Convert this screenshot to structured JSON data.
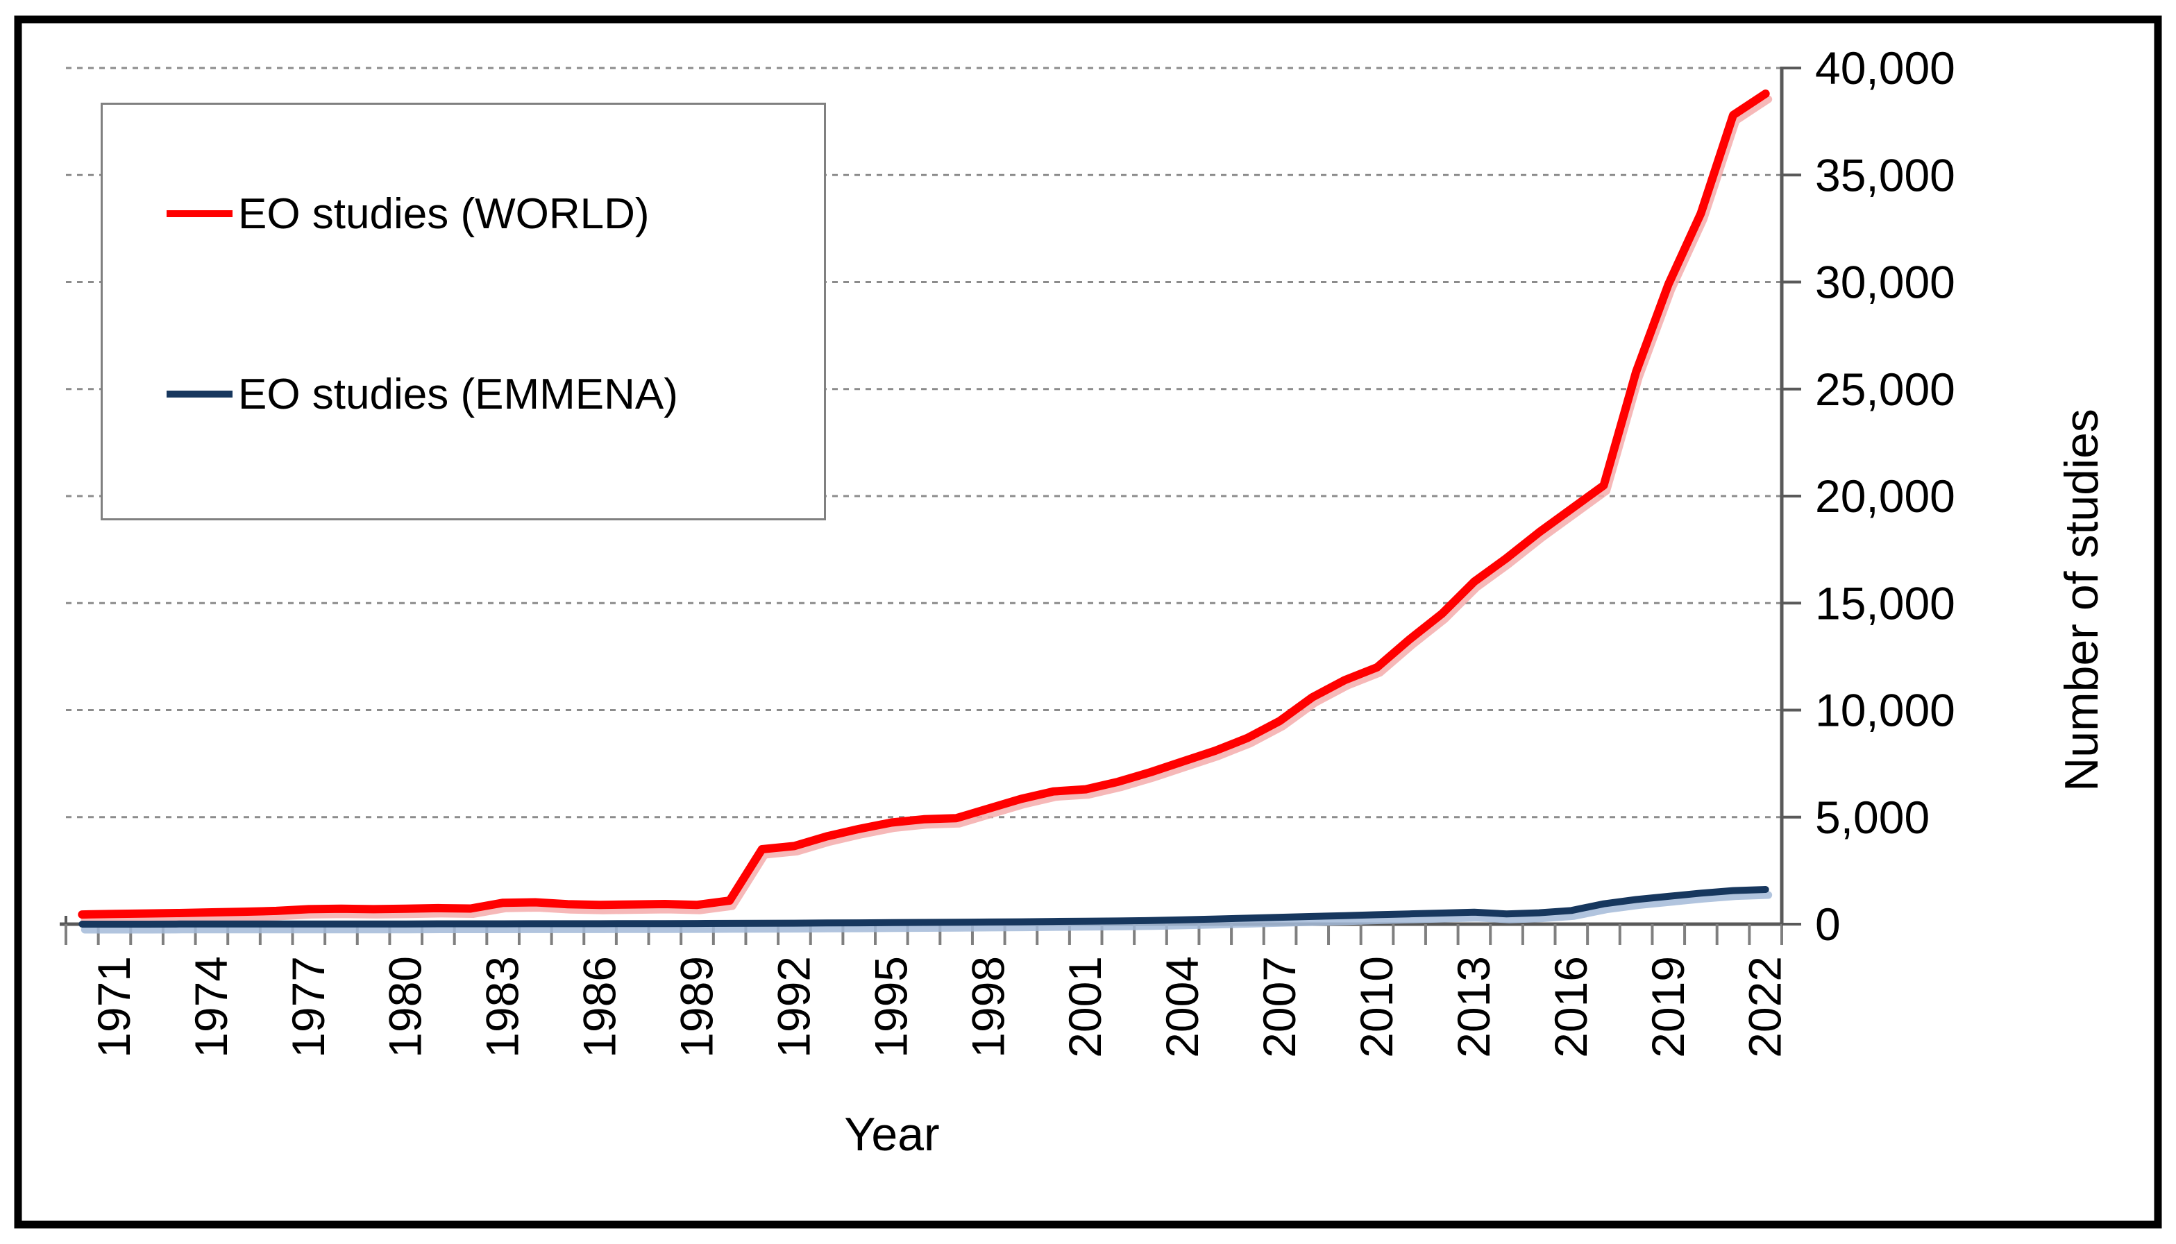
{
  "figure": {
    "background": "#ffffff",
    "outer_border_color": "#000000",
    "outer_border_width": 11,
    "plot_border_color": "#595959",
    "gridline_color": "#8c8c8c",
    "tick_color": "#7f7f7f",
    "text_color": "#000000"
  },
  "legend": {
    "entries": [
      {
        "label": "EO studies (WORLD)",
        "color": "#ff0000"
      },
      {
        "label": "EO studies (EMMENA)",
        "color": "#17375e"
      }
    ]
  },
  "chart_data": {
    "type": "line",
    "title": "",
    "xlabel": "Year",
    "ylabel": "Number of studies",
    "ylim": [
      0,
      40000
    ],
    "y_ticks": [
      0,
      5000,
      10000,
      15000,
      20000,
      25000,
      30000,
      35000,
      40000
    ],
    "y_tick_labels": [
      "0",
      "5,000",
      "10,000",
      "15,000",
      "20,000",
      "25,000",
      "30,000",
      "35,000",
      "40,000"
    ],
    "grid": "horizontal-dashed",
    "legend_position": "top-left-box",
    "x": [
      1970,
      1971,
      1972,
      1973,
      1974,
      1975,
      1976,
      1977,
      1978,
      1979,
      1980,
      1981,
      1982,
      1983,
      1984,
      1985,
      1986,
      1987,
      1988,
      1989,
      1990,
      1991,
      1992,
      1993,
      1994,
      1995,
      1996,
      1997,
      1998,
      1999,
      2000,
      2001,
      2002,
      2003,
      2004,
      2005,
      2006,
      2007,
      2008,
      2009,
      2010,
      2011,
      2012,
      2013,
      2014,
      2015,
      2016,
      2017,
      2018,
      2019,
      2020,
      2021,
      2022
    ],
    "x_label_years": [
      "1971",
      "1974",
      "1977",
      "1980",
      "1983",
      "1986",
      "1989",
      "1992",
      "1995",
      "1998",
      "2001",
      "2004",
      "2007",
      "2010",
      "2013",
      "2016",
      "2019",
      "2022"
    ],
    "series": [
      {
        "name": "EO studies (WORLD)",
        "color": "#ff0000",
        "shadow_color": "#f5abab",
        "values": [
          450,
          480,
          500,
          520,
          550,
          580,
          620,
          700,
          720,
          700,
          720,
          750,
          730,
          1000,
          1020,
          930,
          900,
          920,
          940,
          900,
          1100,
          3500,
          3650,
          4100,
          4450,
          4750,
          4900,
          4950,
          5400,
          5850,
          6200,
          6300,
          6650,
          7100,
          7600,
          8100,
          8700,
          9500,
          10600,
          11400,
          12000,
          13300,
          14500,
          16000,
          17100,
          18300,
          19400,
          20500,
          25800,
          29900,
          33200,
          37800,
          38800
        ]
      },
      {
        "name": "EO studies (EMMENA)",
        "color": "#17375e",
        "shadow_color": "#a3bad8",
        "values": [
          0,
          0,
          0,
          5,
          5,
          5,
          5,
          10,
          10,
          10,
          10,
          15,
          15,
          15,
          20,
          20,
          20,
          25,
          25,
          30,
          35,
          40,
          45,
          55,
          60,
          70,
          80,
          90,
          100,
          110,
          125,
          135,
          150,
          170,
          200,
          240,
          280,
          320,
          360,
          400,
          440,
          480,
          520,
          560,
          480,
          530,
          640,
          950,
          1150,
          1300,
          1450,
          1570,
          1620
        ]
      }
    ]
  }
}
